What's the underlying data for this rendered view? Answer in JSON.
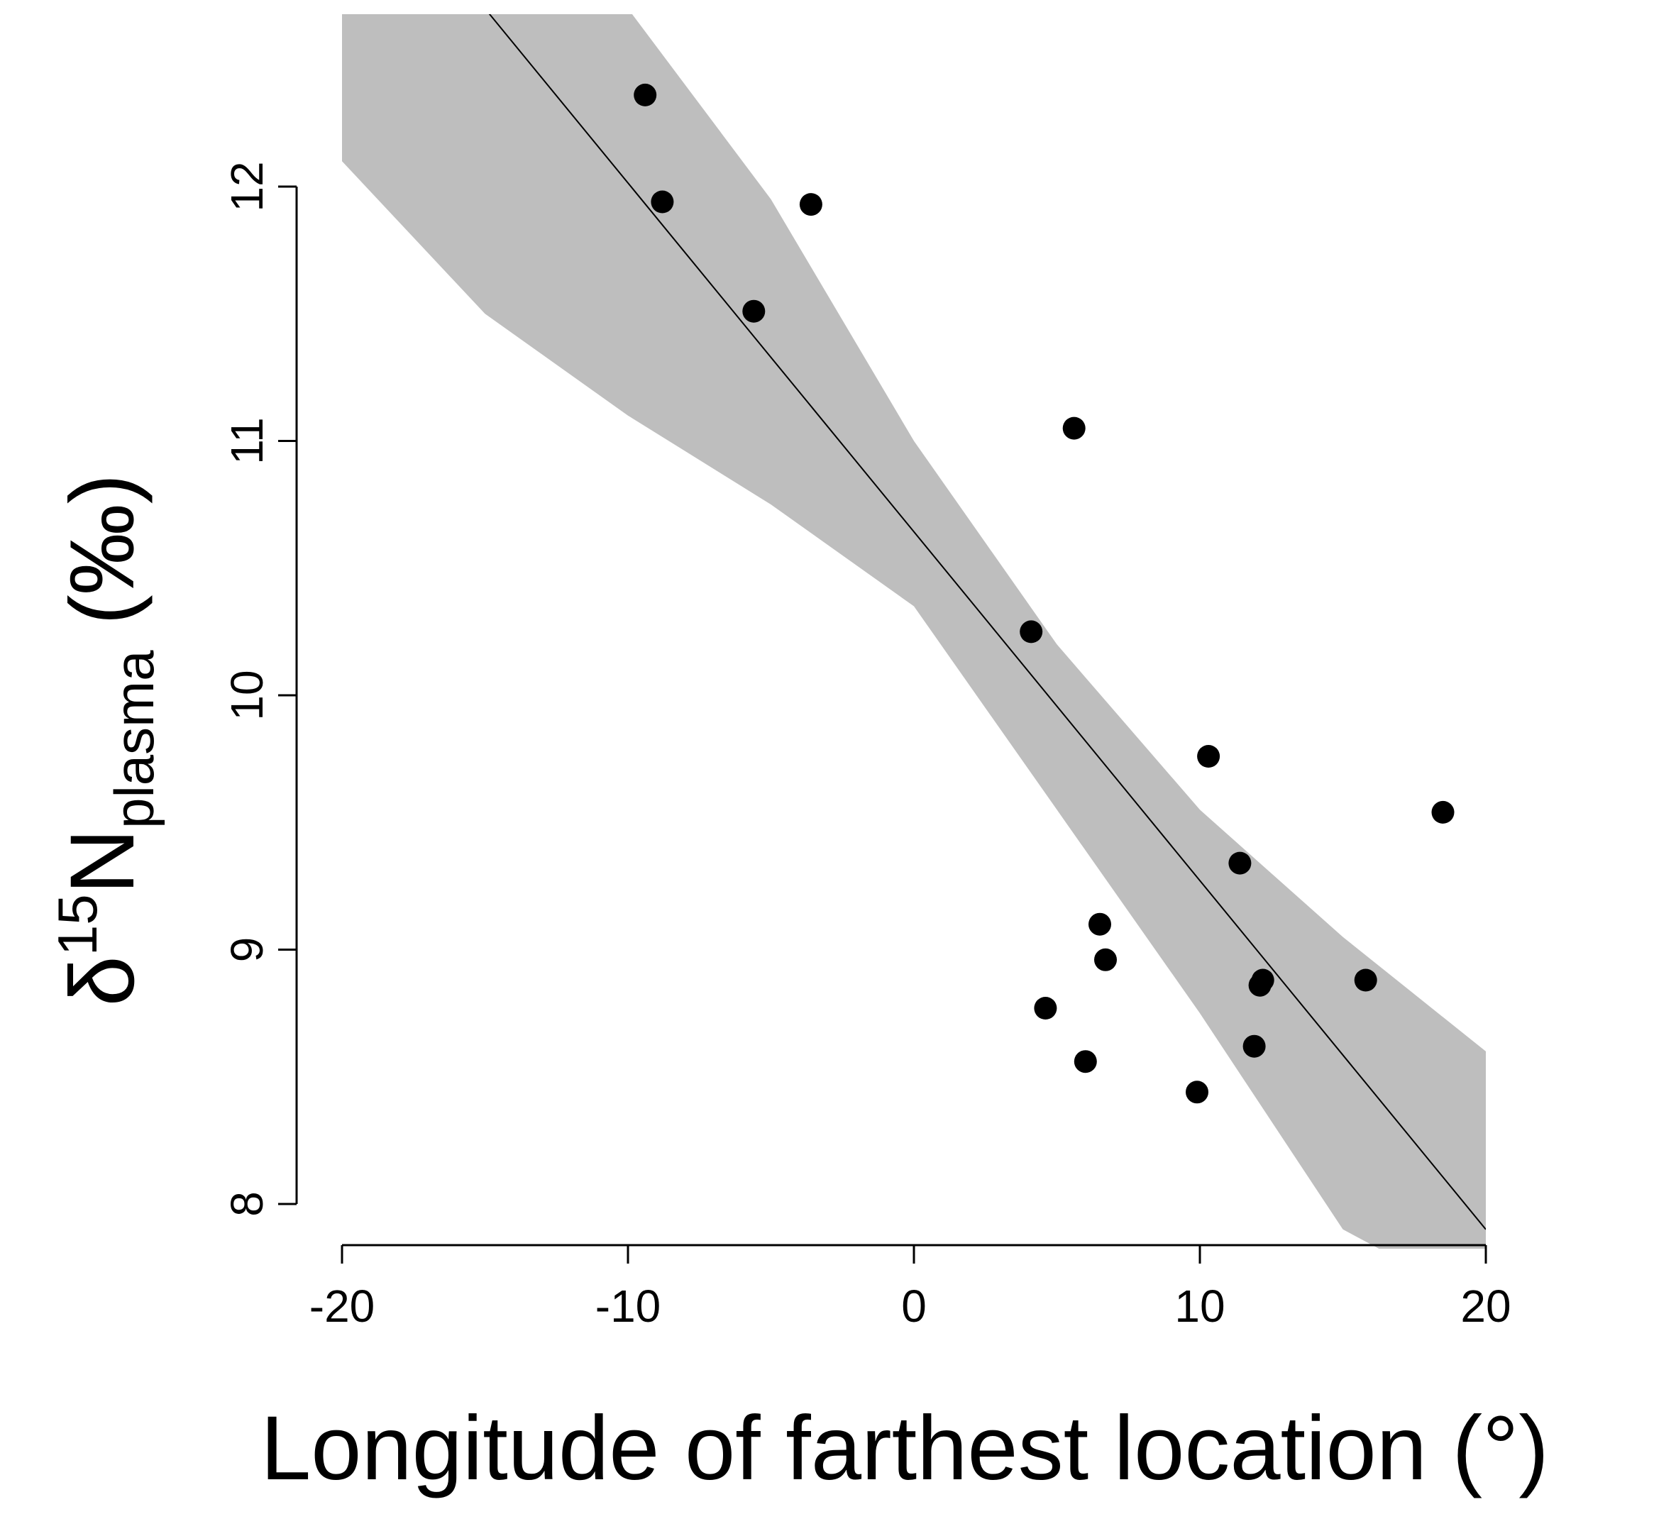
{
  "chart_data": {
    "type": "scatter",
    "xlabel": "Longitude of farthest location (°)",
    "ylabel": {
      "prefix": "δ",
      "superscript": "15",
      "main": "N",
      "subscript": "plasma",
      "suffix": " (‰)"
    },
    "xlim": [
      -20,
      20
    ],
    "ylim": [
      8,
      12.7
    ],
    "xticks": [
      -20,
      -10,
      0,
      10,
      20
    ],
    "xtick_labels": [
      "-20",
      "-10",
      "0",
      "10",
      "20"
    ],
    "yticks": [
      8,
      9,
      10,
      11,
      12
    ],
    "ytick_labels": [
      "8",
      "9",
      "10",
      "11",
      "12"
    ],
    "grid": false,
    "points": {
      "x": [
        -9.4,
        -8.8,
        -3.6,
        -5.6,
        5.6,
        4.1,
        10.3,
        18.5,
        11.4,
        6.5,
        6.7,
        4.6,
        12.1,
        12.2,
        15.8,
        6.0,
        11.9,
        9.9
      ],
      "y": [
        12.36,
        11.94,
        11.93,
        11.51,
        11.05,
        10.25,
        9.76,
        9.54,
        9.34,
        9.1,
        8.96,
        8.77,
        8.86,
        8.88,
        8.88,
        8.56,
        8.62,
        8.44
      ]
    },
    "fit_line": {
      "x": [
        -15,
        20
      ],
      "y": [
        12.7,
        7.9
      ]
    },
    "confidence_band": {
      "x": [
        -20,
        -15,
        -10,
        -5,
        0,
        5,
        10,
        15,
        20
      ],
      "upper": [
        12.7,
        12.7,
        12.7,
        11.95,
        11.0,
        10.2,
        9.55,
        9.05,
        8.6
      ],
      "lower": [
        12.1,
        11.5,
        11.1,
        10.75,
        10.35,
        9.55,
        8.75,
        7.9,
        7.6
      ]
    },
    "colors": {
      "points": "#000000",
      "band": "#bebebe",
      "line": "#000000"
    }
  }
}
